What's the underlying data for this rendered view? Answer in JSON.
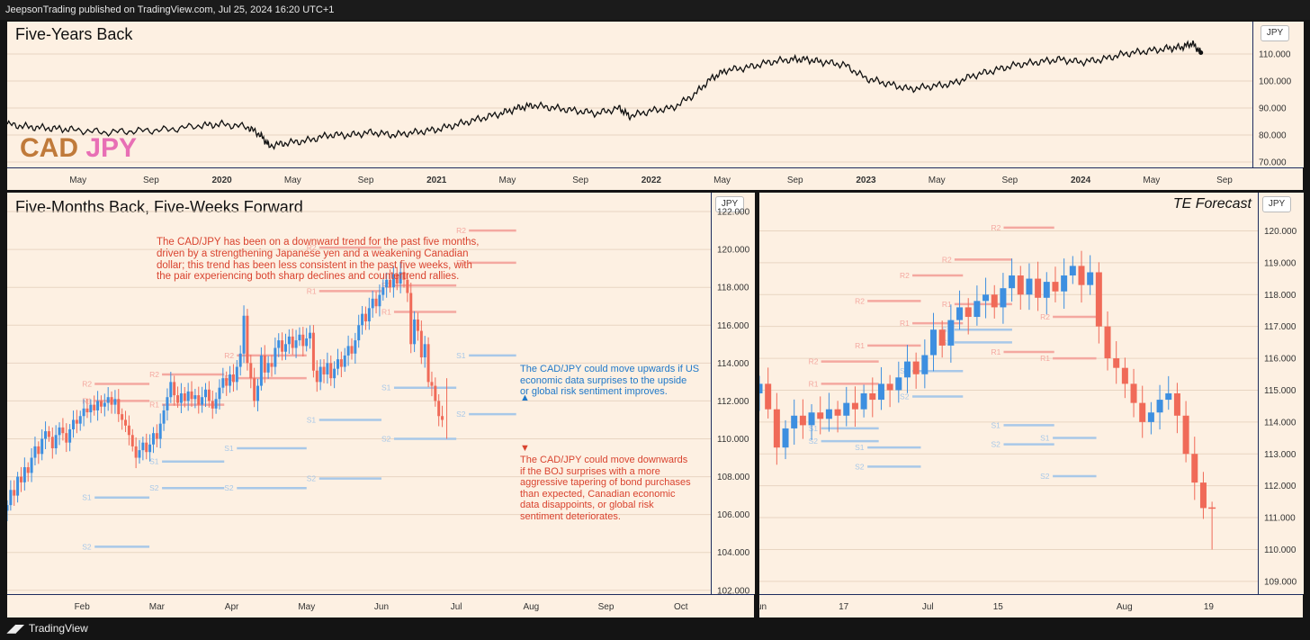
{
  "header": {
    "publish_text": "JeepsonTrading published on TradingView.com, Jul 25, 2024 16:20 UTC+1"
  },
  "footer": {
    "brand": "TradingView"
  },
  "colors": {
    "bg": "#fdf0e2",
    "up": "#3d8fe0",
    "down": "#f06a58",
    "resistance": "#f4a8a0",
    "support": "#a8c8e8",
    "red_text": "#d9432f",
    "blue_text": "#1f78c9"
  },
  "panels": {
    "top": {
      "title": "Five-Years Back",
      "axis_unit": "JPY",
      "logo_cad": "CAD",
      "logo_jpy": "JPY"
    },
    "left": {
      "title": "Five-Months Back, Five-Weeks Forward",
      "axis_unit": "JPY"
    },
    "right": {
      "title": "TE Forecast",
      "axis_unit": "JPY"
    }
  },
  "annotations": {
    "main": [
      "The CAD/JPY has been on a downward trend for the past five months,",
      "driven by a strengthening Japanese yen and a weakening Canadian",
      "dollar; this trend has been less consistent in the past five weeks, with",
      "the pair experiencing both sharp declines and countertrend rallies."
    ],
    "up": [
      "The CAD/JPY could move upwards if US",
      "economic data surprises to the upside",
      "or global risk sentiment improves."
    ],
    "down": [
      "The CAD/JPY could move downwards",
      "if the BOJ surprises with a more",
      "aggressive tapering of bond purchases",
      "than expected, Canadian economic",
      "data disappoints, or global risk",
      "sentiment deteriorates."
    ]
  },
  "chart_data": [
    {
      "type": "line",
      "title": "Five-Years Back",
      "ylabel": "JPY",
      "ylim": [
        68,
        122
      ],
      "yticks": [
        70,
        80,
        90,
        100,
        110
      ],
      "ytick_labels": [
        "70.000",
        "80.000",
        "90.000",
        "100.000",
        "110.000"
      ],
      "xtick_labels": [
        "May",
        "Sep",
        "2020",
        "May",
        "Sep",
        "2021",
        "May",
        "Sep",
        "2022",
        "May",
        "Sep",
        "2023",
        "May",
        "Sep",
        "2024",
        "May",
        "Sep"
      ],
      "xtick_pos": [
        2019.33,
        2019.67,
        2020.0,
        2020.33,
        2020.67,
        2021.0,
        2021.33,
        2021.67,
        2022.0,
        2022.33,
        2022.67,
        2023.0,
        2023.33,
        2023.67,
        2024.0,
        2024.33,
        2024.67
      ],
      "xlim": [
        2019.0,
        2024.8
      ],
      "series": [
        {
          "x": [
            2019.0,
            2019.1,
            2019.2,
            2019.3,
            2019.45,
            2019.6,
            2019.75,
            2019.9,
            2020.0,
            2020.12,
            2020.18,
            2020.22,
            2020.3,
            2020.4,
            2020.5,
            2020.6,
            2020.7,
            2020.8,
            2020.9,
            2021.0,
            2021.1,
            2021.2,
            2021.3,
            2021.38,
            2021.45,
            2021.55,
            2021.65,
            2021.75,
            2021.85,
            2021.9,
            2022.0,
            2022.1,
            2022.2,
            2022.28,
            2022.35,
            2022.45,
            2022.55,
            2022.65,
            2022.72,
            2022.8,
            2022.9,
            2023.0,
            2023.1,
            2023.2,
            2023.3,
            2023.4,
            2023.5,
            2023.6,
            2023.7,
            2023.8,
            2023.9,
            2024.0,
            2024.1,
            2024.2,
            2024.3,
            2024.4,
            2024.47,
            2024.52,
            2024.56
          ],
          "y": [
            84,
            83,
            82.5,
            82,
            81,
            81.5,
            82,
            83.5,
            84,
            83,
            80,
            76,
            77,
            78,
            80,
            80,
            81,
            80,
            81,
            82,
            84,
            86,
            88,
            90,
            91,
            90,
            89,
            88,
            90,
            87,
            89,
            90,
            95,
            101,
            104,
            105,
            107,
            108,
            108,
            107,
            106,
            101,
            99,
            97,
            98,
            99,
            102,
            104,
            106,
            107,
            108,
            107,
            108,
            110,
            111,
            112,
            112.5,
            114,
            110.5
          ]
        }
      ]
    },
    {
      "type": "candlestick",
      "title": "Five-Months Back, Five-Weeks Forward",
      "ylabel": "JPY",
      "ylim": [
        101.8,
        123
      ],
      "yticks": [
        102,
        104,
        106,
        108,
        110,
        112,
        114,
        116,
        118,
        120,
        122
      ],
      "ytick_labels": [
        "102.000",
        "104.000",
        "106.000",
        "108.000",
        "110.000",
        "112.000",
        "114.000",
        "116.000",
        "118.000",
        "120.000",
        "122.000"
      ],
      "xtick_labels": [
        "Feb",
        "Mar",
        "Apr",
        "May",
        "Jun",
        "Jul",
        "Aug",
        "Sep",
        "Oct"
      ],
      "xtick_pos": [
        2.0,
        3.0,
        4.0,
        5.0,
        6.0,
        7.0,
        8.0,
        9.0,
        10.0
      ],
      "xlim": [
        1.0,
        10.4
      ],
      "candles": {
        "x0": 1.0,
        "dx": 0.0465,
        "closes": [
          106.5,
          107.3,
          107.0,
          108.0,
          107.7,
          108.5,
          108.2,
          109.0,
          109.6,
          109.2,
          110.0,
          110.4,
          110.1,
          109.5,
          110.2,
          110.6,
          110.3,
          109.8,
          110.5,
          111.0,
          110.8,
          111.2,
          111.6,
          111.4,
          111.8,
          111.5,
          112.0,
          111.7,
          111.9,
          112.2,
          111.8,
          112.1,
          111.3,
          111.0,
          110.7,
          110.2,
          109.6,
          109.0,
          109.4,
          109.8,
          109.3,
          109.7,
          110.3,
          110.0,
          110.8,
          111.5,
          112.2,
          113.0,
          112.3,
          111.9,
          112.4,
          112.0,
          112.5,
          112.1,
          112.3,
          111.8,
          112.2,
          112.6,
          112.0,
          111.6,
          112.1,
          112.7,
          113.2,
          112.8,
          113.4,
          113.0,
          113.8,
          114.5,
          116.5,
          114.0,
          113.2,
          112.0,
          112.8,
          114.4,
          113.5,
          114.0,
          113.8,
          114.8,
          115.2,
          114.6,
          115.0,
          115.4,
          114.8,
          115.2,
          115.5,
          114.9,
          115.3,
          115.6,
          113.6,
          113.0,
          113.8,
          113.4,
          114.0,
          113.2,
          113.7,
          114.2,
          113.8,
          114.4,
          114.9,
          114.5,
          115.2,
          116.0,
          116.6,
          116.2,
          116.9,
          117.4,
          117.0,
          117.6,
          118.0,
          118.4,
          118.0,
          118.7,
          118.2,
          118.8,
          118.4,
          117.7,
          115.0,
          116.3,
          115.7,
          114.3,
          115.0,
          113.0,
          112.8,
          112.0,
          111.2,
          111.0
        ]
      },
      "levels": [
        {
          "label": "R1",
          "type": "resistance",
          "y": 112.0,
          "x0": 2.0,
          "x1": 2.9
        },
        {
          "label": "R2",
          "type": "resistance",
          "y": 112.9,
          "x0": 2.0,
          "x1": 2.9
        },
        {
          "label": "S1",
          "type": "support",
          "y": 106.9,
          "x0": 2.0,
          "x1": 2.9
        },
        {
          "label": "S2",
          "type": "support",
          "y": 104.3,
          "x0": 2.0,
          "x1": 2.9
        },
        {
          "label": "R1",
          "type": "resistance",
          "y": 111.8,
          "x0": 2.9,
          "x1": 3.9
        },
        {
          "label": "R2",
          "type": "resistance",
          "y": 113.4,
          "x0": 2.9,
          "x1": 3.9
        },
        {
          "label": "S1",
          "type": "support",
          "y": 108.8,
          "x0": 2.9,
          "x1": 3.9
        },
        {
          "label": "S2",
          "type": "support",
          "y": 107.4,
          "x0": 2.9,
          "x1": 3.9
        },
        {
          "label": "R1",
          "type": "resistance",
          "y": 113.2,
          "x0": 3.9,
          "x1": 5.0
        },
        {
          "label": "R2",
          "type": "resistance",
          "y": 114.4,
          "x0": 3.9,
          "x1": 5.0
        },
        {
          "label": "S1",
          "type": "support",
          "y": 109.5,
          "x0": 3.9,
          "x1": 5.0
        },
        {
          "label": "S2",
          "type": "support",
          "y": 107.4,
          "x0": 3.9,
          "x1": 5.0
        },
        {
          "label": "R1",
          "type": "resistance",
          "y": 117.8,
          "x0": 5.0,
          "x1": 6.0
        },
        {
          "label": "R2",
          "type": "resistance",
          "y": 120.1,
          "x0": 5.0,
          "x1": 6.0
        },
        {
          "label": "S1",
          "type": "support",
          "y": 111.0,
          "x0": 5.0,
          "x1": 6.0
        },
        {
          "label": "S2",
          "type": "support",
          "y": 107.9,
          "x0": 5.0,
          "x1": 6.0
        },
        {
          "label": "R1",
          "type": "resistance",
          "y": 116.7,
          "x0": 6.0,
          "x1": 7.0
        },
        {
          "label": "R2",
          "type": "resistance",
          "y": 118.1,
          "x0": 6.0,
          "x1": 7.0
        },
        {
          "label": "S1",
          "type": "support",
          "y": 112.7,
          "x0": 6.0,
          "x1": 7.0
        },
        {
          "label": "S2",
          "type": "support",
          "y": 110.0,
          "x0": 6.0,
          "x1": 7.0
        },
        {
          "label": "R1",
          "type": "resistance",
          "y": 119.3,
          "x0": 7.0,
          "x1": 7.8
        },
        {
          "label": "R2",
          "type": "resistance",
          "y": 121.0,
          "x0": 7.0,
          "x1": 7.8
        },
        {
          "label": "S1",
          "type": "support",
          "y": 114.4,
          "x0": 7.0,
          "x1": 7.8
        },
        {
          "label": "S2",
          "type": "support",
          "y": 111.3,
          "x0": 7.0,
          "x1": 7.8
        }
      ]
    },
    {
      "type": "candlestick",
      "title": "TE Forecast",
      "ylabel": "JPY",
      "ylim": [
        108.6,
        121.2
      ],
      "yticks": [
        109,
        110,
        111,
        112,
        113,
        114,
        115,
        116,
        117,
        118,
        119,
        120
      ],
      "ytick_labels": [
        "109.000",
        "110.000",
        "111.000",
        "112.000",
        "113.000",
        "114.000",
        "115.000",
        "116.000",
        "117.000",
        "118.000",
        "119.000",
        "120.000"
      ],
      "xtick_labels": [
        "Jun",
        "17",
        "Jul",
        "15",
        "Aug",
        "19"
      ],
      "xtick_pos": [
        0.0,
        6.0,
        12.0,
        17.0,
        26.0,
        32.0
      ],
      "xlim": [
        0.0,
        35.5
      ],
      "candles": {
        "x0": 0.0,
        "dx": 0.62,
        "closes": [
          115.2,
          114.4,
          113.2,
          113.8,
          114.2,
          113.9,
          114.3,
          114.1,
          114.4,
          114.2,
          114.6,
          114.4,
          114.9,
          114.7,
          115.2,
          115.0,
          115.4,
          115.9,
          115.5,
          116.1,
          116.9,
          116.4,
          117.2,
          117.6,
          117.3,
          117.8,
          118.0,
          117.6,
          118.2,
          118.6,
          118.0,
          118.5,
          117.9,
          118.4,
          118.1,
          118.6,
          118.9,
          118.3,
          118.7,
          117.0,
          116.0,
          115.7,
          115.2,
          114.6,
          114.0,
          114.3,
          114.7,
          114.9,
          114.2,
          113.0,
          112.1,
          111.3
        ]
      },
      "levels": [
        {
          "label": "R1",
          "type": "resistance",
          "y": 115.2,
          "x0": 3.5,
          "x1": 8.5
        },
        {
          "label": "R2",
          "type": "resistance",
          "y": 115.9,
          "x0": 3.5,
          "x1": 8.5
        },
        {
          "label": "S1",
          "type": "support",
          "y": 113.8,
          "x0": 3.5,
          "x1": 8.5
        },
        {
          "label": "S2",
          "type": "support",
          "y": 113.4,
          "x0": 3.5,
          "x1": 8.5
        },
        {
          "label": "R1",
          "type": "resistance",
          "y": 116.4,
          "x0": 6.8,
          "x1": 11.5
        },
        {
          "label": "R2",
          "type": "resistance",
          "y": 117.8,
          "x0": 6.8,
          "x1": 11.5
        },
        {
          "label": "S1",
          "type": "support",
          "y": 113.2,
          "x0": 6.8,
          "x1": 11.5
        },
        {
          "label": "S2",
          "type": "support",
          "y": 112.6,
          "x0": 6.8,
          "x1": 11.5
        },
        {
          "label": "R1",
          "type": "resistance",
          "y": 117.1,
          "x0": 10.0,
          "x1": 14.5
        },
        {
          "label": "R2",
          "type": "resistance",
          "y": 118.6,
          "x0": 10.0,
          "x1": 14.5
        },
        {
          "label": "S1",
          "type": "support",
          "y": 115.6,
          "x0": 10.0,
          "x1": 14.5
        },
        {
          "label": "S2",
          "type": "support",
          "y": 114.8,
          "x0": 10.0,
          "x1": 14.5
        },
        {
          "label": "R1",
          "type": "resistance",
          "y": 117.7,
          "x0": 13.0,
          "x1": 18.0
        },
        {
          "label": "R2",
          "type": "resistance",
          "y": 119.1,
          "x0": 13.0,
          "x1": 18.0
        },
        {
          "label": "S1",
          "type": "support",
          "y": 116.9,
          "x0": 13.0,
          "x1": 18.0
        },
        {
          "label": "S2",
          "type": "support",
          "y": 116.5,
          "x0": 13.0,
          "x1": 18.0
        },
        {
          "label": "R1",
          "type": "resistance",
          "y": 116.2,
          "x0": 16.5,
          "x1": 21.0
        },
        {
          "label": "R2",
          "type": "resistance",
          "y": 120.1,
          "x0": 16.5,
          "x1": 21.0
        },
        {
          "label": "S1",
          "type": "support",
          "y": 113.9,
          "x0": 16.5,
          "x1": 21.0
        },
        {
          "label": "S2",
          "type": "support",
          "y": 113.3,
          "x0": 16.5,
          "x1": 21.0
        },
        {
          "label": "R1",
          "type": "resistance",
          "y": 116.0,
          "x0": 20.0,
          "x1": 24.0
        },
        {
          "label": "R2",
          "type": "resistance",
          "y": 117.3,
          "x0": 20.0,
          "x1": 24.0
        },
        {
          "label": "S1",
          "type": "support",
          "y": 113.5,
          "x0": 20.0,
          "x1": 24.0
        },
        {
          "label": "S2",
          "type": "support",
          "y": 112.3,
          "x0": 20.0,
          "x1": 24.0
        }
      ]
    }
  ]
}
